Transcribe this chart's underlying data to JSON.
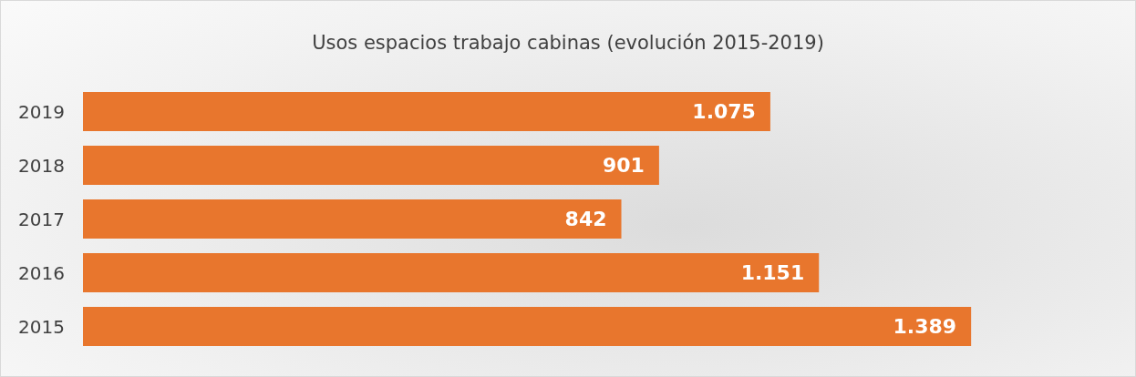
{
  "chart_data": {
    "type": "bar",
    "title": "Usos espacios trabajo cabinas (evolución 2015-2019)",
    "orientation": "horizontal",
    "categories": [
      "2019",
      "2018",
      "2017",
      "2016",
      "2015"
    ],
    "values": [
      1075,
      901,
      842,
      1151,
      1389
    ],
    "value_labels": [
      "1.075",
      "901",
      "842",
      "1.151",
      "1.389"
    ],
    "color": "#e8762d"
  }
}
